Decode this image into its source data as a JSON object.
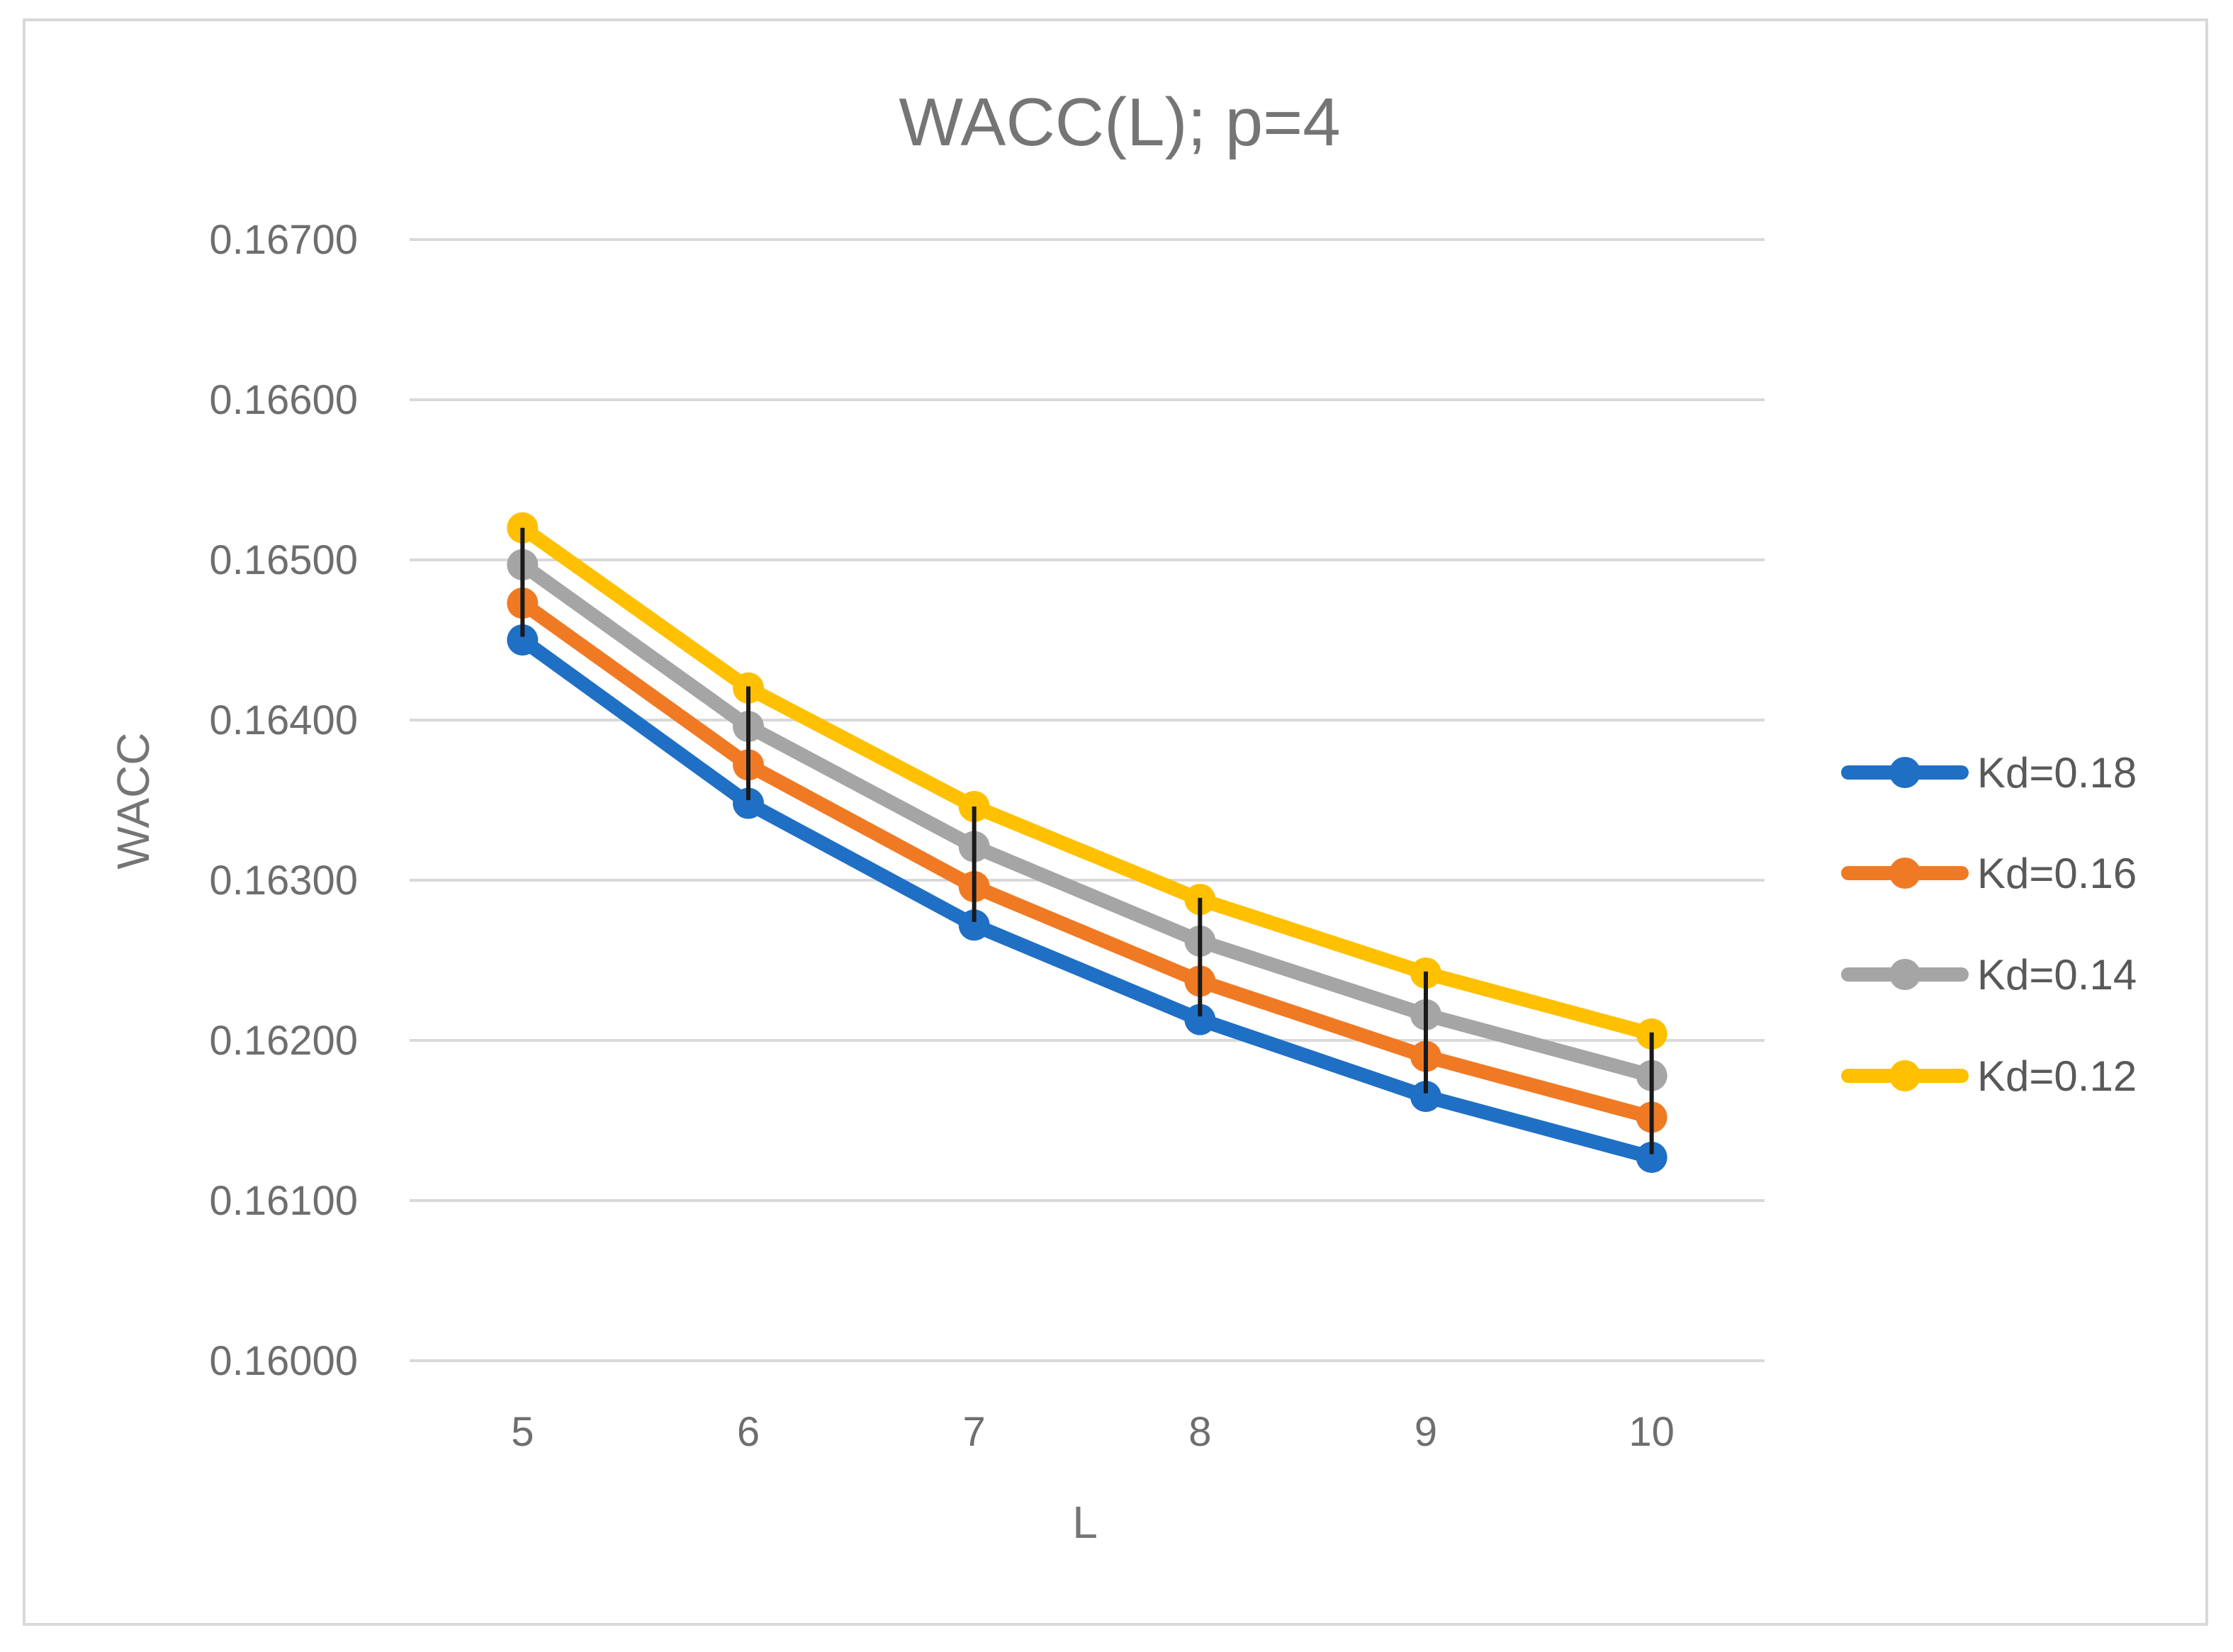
{
  "chart_data": {
    "type": "line",
    "title": "WACC(L); p=4",
    "xlabel": "L",
    "ylabel": "WACC",
    "categories": [
      "5",
      "6",
      "7",
      "8",
      "9",
      "10"
    ],
    "x": [
      5,
      6,
      7,
      8,
      9,
      10
    ],
    "ylim": [
      0.16,
      0.167
    ],
    "yticks": [
      "0.16000",
      "0.16100",
      "0.16200",
      "0.16300",
      "0.16400",
      "0.16500",
      "0.16600",
      "0.16700"
    ],
    "ytick_values": [
      0.16,
      0.161,
      0.162,
      0.163,
      0.164,
      0.165,
      0.166,
      0.167
    ],
    "grid": true,
    "legend_position": "right",
    "series": [
      {
        "name": "Kd=0.18",
        "color": "#1f6fc5",
        "values": [
          0.1645,
          0.16348,
          0.16272,
          0.16213,
          0.16165,
          0.16127
        ]
      },
      {
        "name": "Kd=0.16",
        "color": "#f07a24",
        "values": [
          0.16473,
          0.16372,
          0.16296,
          0.16237,
          0.1619,
          0.16152
        ]
      },
      {
        "name": "Kd=0.14",
        "color": "#a5a5a5",
        "values": [
          0.16497,
          0.16396,
          0.16321,
          0.16262,
          0.16216,
          0.16178
        ]
      },
      {
        "name": "Kd=0.12",
        "color": "#ffc000",
        "values": [
          0.1652,
          0.1642,
          0.16346,
          0.16288,
          0.16242,
          0.16204
        ]
      }
    ],
    "error_bars": {
      "color": "#1a1a1a",
      "low": [
        0.16452,
        0.1635,
        0.16274,
        0.16215,
        0.16167,
        0.16129
      ],
      "high": [
        0.1652,
        0.16421,
        0.16346,
        0.16289,
        0.16243,
        0.16205
      ]
    }
  }
}
